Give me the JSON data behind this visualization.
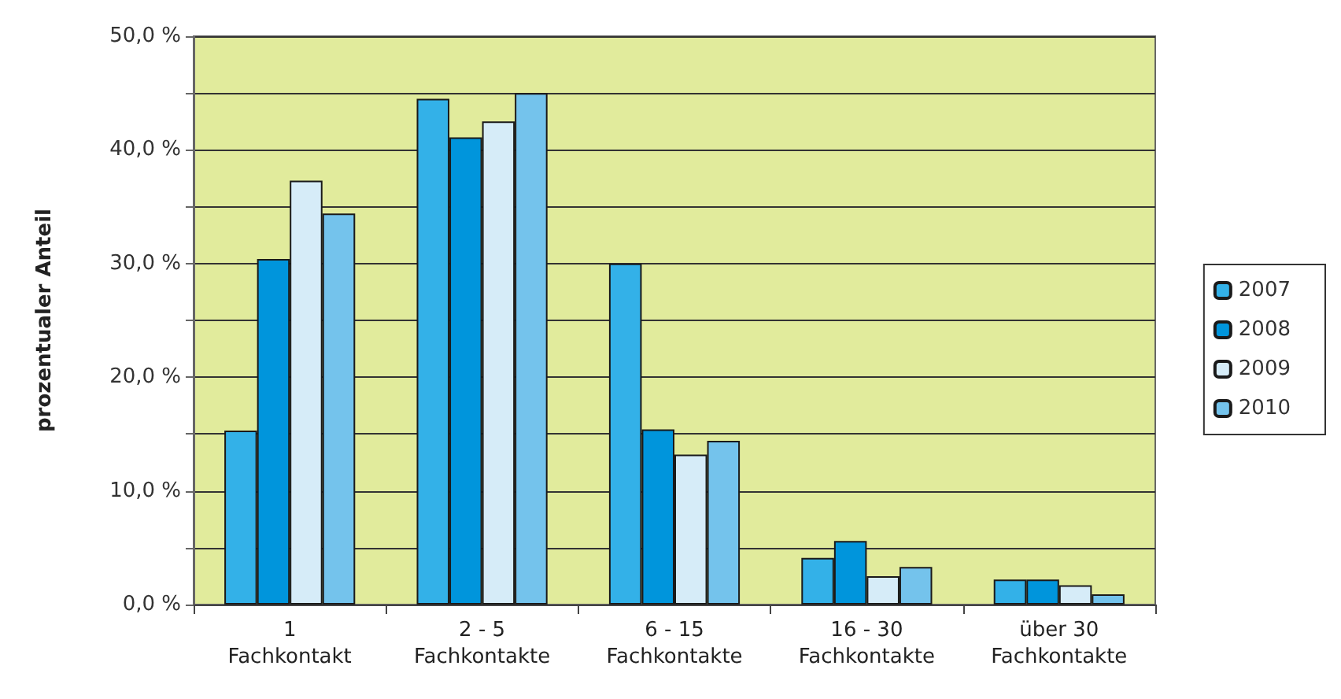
{
  "chart_data": {
    "type": "bar",
    "ylabel": "prozentualer Anteil",
    "categories": [
      "1\nFachkontakt",
      "2 - 5\nFachkontakte",
      "6 - 15\nFachkontakte",
      "16 - 30\nFachkontakte",
      "über 30\nFachkontakte"
    ],
    "series": [
      {
        "name": "2007",
        "color": "#33b1e8",
        "values": [
          15.3,
          44.5,
          30.0,
          4.1,
          2.2
        ]
      },
      {
        "name": "2008",
        "color": "#0095dc",
        "values": [
          30.4,
          41.1,
          15.4,
          5.6,
          2.2
        ]
      },
      {
        "name": "2009",
        "color": "#d6ecf8",
        "values": [
          37.3,
          42.5,
          13.2,
          2.5,
          1.7
        ]
      },
      {
        "name": "2010",
        "color": "#74c3ec",
        "values": [
          34.4,
          45.0,
          14.4,
          3.3,
          0.9
        ]
      }
    ],
    "ylim": [
      0,
      50
    ],
    "yticks": [
      {
        "value": 0,
        "label": "0,0 %"
      },
      {
        "value": 5,
        "label": null
      },
      {
        "value": 10,
        "label": "10,0 %"
      },
      {
        "value": 15,
        "label": null
      },
      {
        "value": 20,
        "label": "20,0 %"
      },
      {
        "value": 25,
        "label": null
      },
      {
        "value": 30,
        "label": "30,0 %"
      },
      {
        "value": 35,
        "label": null
      },
      {
        "value": 40,
        "label": "40,0 %"
      },
      {
        "value": 45,
        "label": null
      },
      {
        "value": 50,
        "label": "50,0 %"
      }
    ],
    "grid": true,
    "legend": "right"
  }
}
